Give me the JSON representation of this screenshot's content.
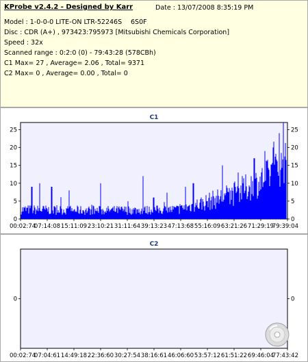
{
  "header": {
    "app_title": "KProbe v2.4.2 - Designed by Karr",
    "date": "Date : 13/07/2008 8:35:19 PM",
    "model": "Model : 1-0-0-0 LITE-ON LTR-52246S",
    "firmware": "6S0F",
    "disc": "Disc : CDR (A+) , 973423:795973 [Mitsubishi Chemicals Corporation]",
    "speed": "Speed : 32x",
    "scanned_range": "Scanned range : 0:2:0 (0) - 79:43:28 (578CBh)",
    "c1_stats": "C1 Max= 27 , Average= 2.06 , Total= 9371",
    "c2_stats": "C2 Max= 0 , Average= 0.00 , Total= 0"
  },
  "chart_data": [
    {
      "type": "bar",
      "title": "C1",
      "ylim": [
        0,
        27
      ],
      "yticks": [
        "0",
        "5",
        "10",
        "15",
        "20",
        "25"
      ],
      "xticks": [
        "00:02:74",
        "07:14:08",
        "15:11:09",
        "23:10:21",
        "31:11:64",
        "39:13:23",
        "47:13:68",
        "55:16:09",
        "63:21:26",
        "71:29:19",
        "79:39:04"
      ],
      "bar_color": "#0000ff",
      "profile": [
        {
          "at": 0.0,
          "base": 2.2,
          "spread": 2.8
        },
        {
          "at": 0.25,
          "base": 2.0,
          "spread": 2.6
        },
        {
          "at": 0.5,
          "base": 2.1,
          "spread": 2.6
        },
        {
          "at": 0.6,
          "base": 2.3,
          "spread": 2.8
        },
        {
          "at": 0.7,
          "base": 4.0,
          "spread": 5.0
        },
        {
          "at": 0.8,
          "base": 6.0,
          "spread": 7.0
        },
        {
          "at": 0.9,
          "base": 9.0,
          "spread": 9.0
        },
        {
          "at": 1.0,
          "base": 14.0,
          "spread": 12.0
        }
      ],
      "max": 27,
      "average": 2.06,
      "total": 9371
    },
    {
      "type": "bar",
      "title": "C2",
      "ylim": [
        -1,
        1
      ],
      "yticks": [
        "0"
      ],
      "xticks": [
        "00:02:74",
        "07:04:61",
        "14:49:18",
        "22:36:60",
        "30:27:54",
        "38:16:61",
        "46:06:60",
        "53:57:12",
        "61:51:22",
        "69:46:04",
        "77:43:42"
      ],
      "max": 0,
      "average": 0.0,
      "total": 0
    }
  ]
}
